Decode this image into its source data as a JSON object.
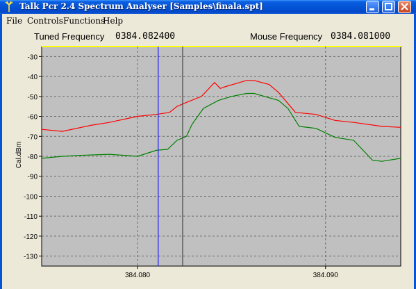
{
  "window": {
    "title": "Talk Pcr 2.4 Spectrum Analyser [Samples\\finala.spt]"
  },
  "menu": {
    "items": [
      "File",
      "Controls",
      "Functions",
      "Help"
    ]
  },
  "readout": {
    "tuned_label": "Tuned Frequency",
    "tuned_value": "0384.082400",
    "mouse_label": "Mouse Frequency",
    "mouse_value": "0384.081000"
  },
  "chart_data": {
    "type": "line",
    "ylabel": "Cal.dBm",
    "xlabel": "",
    "ylim": [
      -135,
      -25
    ],
    "xlim": [
      384.0749,
      384.094
    ],
    "yticks": [
      -30,
      -40,
      -50,
      -60,
      -70,
      -80,
      -90,
      -100,
      -110,
      -120,
      -130
    ],
    "xticks": [
      384.08,
      384.09
    ],
    "xtick_labels": [
      "384.080",
      "384.090"
    ],
    "grid": true,
    "markers": {
      "tuned": 384.0824,
      "mouse": 384.0811
    },
    "colors": {
      "plot_bg": "#c0c0c0",
      "tuned_marker": "#444444",
      "mouse_marker": "#2020ff",
      "series_1": "#ff0000",
      "series_2": "#008000",
      "top_line": "#ffff00"
    },
    "series": [
      {
        "color": "#ff0000",
        "x": [
          384.0749,
          384.076,
          384.0775,
          384.0785,
          384.08,
          384.081,
          384.0817,
          384.0821,
          384.0826,
          384.0834,
          384.0841,
          384.0844,
          384.0847,
          384.0858,
          384.0862,
          384.087,
          384.0875,
          384.0884,
          384.0895,
          384.0905,
          384.0915,
          384.093,
          384.094
        ],
        "y": [
          -66.5,
          -67.5,
          -64.5,
          -63,
          -60,
          -59,
          -58,
          -55,
          -53,
          -50,
          -43,
          -46,
          -45,
          -42,
          -42,
          -44,
          -48,
          -58,
          -59,
          -62,
          -63,
          -65,
          -65.5
        ]
      },
      {
        "color": "#008000",
        "x": [
          384.0749,
          384.076,
          384.077,
          384.0785,
          384.08,
          384.081,
          384.0816,
          384.0821,
          384.0826,
          384.0829,
          384.0835,
          384.0843,
          384.085,
          384.0858,
          384.0862,
          384.0875,
          384.088,
          384.0886,
          384.0895,
          384.0905,
          384.0915,
          384.0925,
          384.093,
          384.094
        ],
        "y": [
          -81,
          -80,
          -79.5,
          -79,
          -80,
          -77,
          -76.5,
          -72,
          -70,
          -64,
          -56,
          -52,
          -50,
          -48.5,
          -48.5,
          -52,
          -56,
          -65,
          -66,
          -70.5,
          -72,
          -82,
          -82.5,
          -81
        ]
      }
    ]
  }
}
